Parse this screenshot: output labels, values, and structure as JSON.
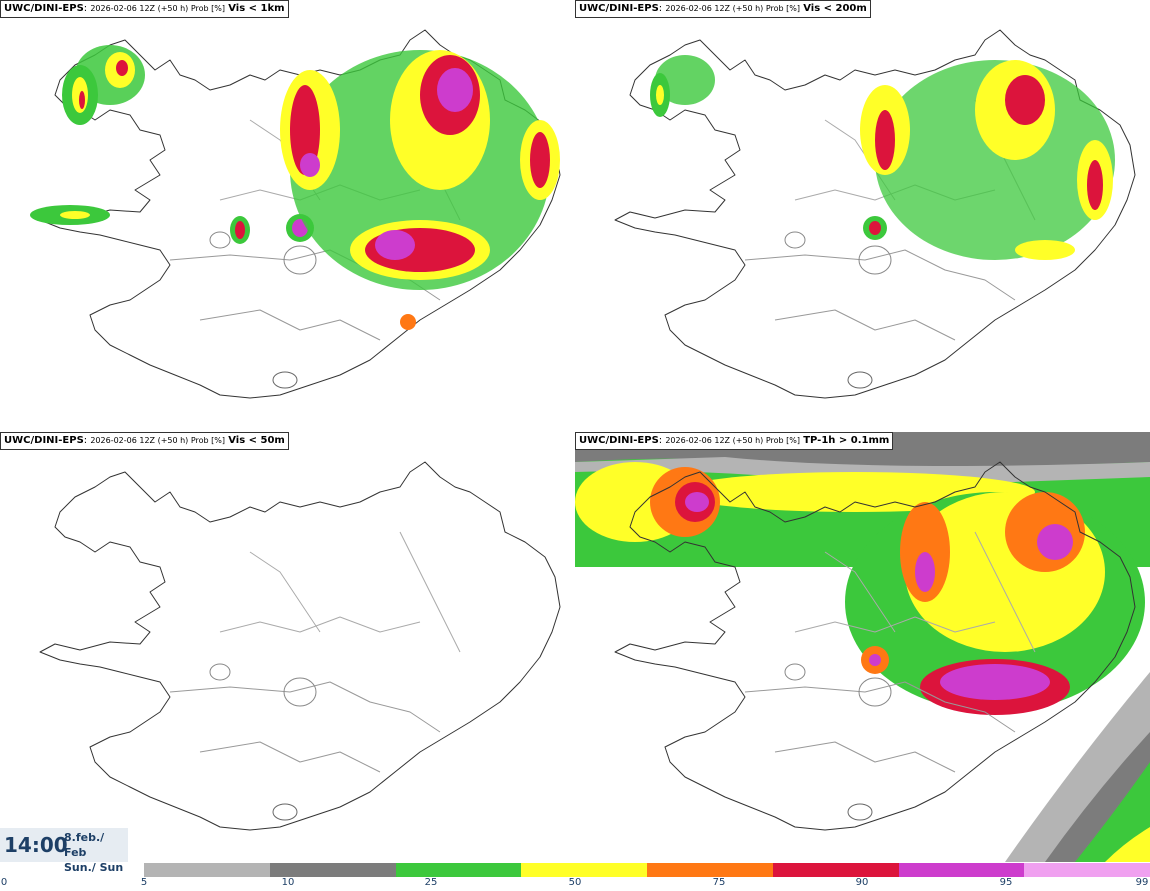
{
  "panels": [
    {
      "model": "UWC/DINI-EPS",
      "meta": "2026-02-06 12Z (+50 h) Prob [%]",
      "field": "Vis < 1km"
    },
    {
      "model": "UWC/DINI-EPS",
      "meta": "2026-02-06 12Z (+50 h) Prob [%]",
      "field": "Vis < 200m"
    },
    {
      "model": "UWC/DINI-EPS",
      "meta": "2026-02-06 12Z (+50 h) Prob [%]",
      "field": "Vis < 50m"
    },
    {
      "model": "UWC/DINI-EPS",
      "meta": "2026-02-06 12Z (+50 h) Prob [%]",
      "field": "TP-1h > 0.1mm"
    }
  ],
  "valid_time": {
    "time": "14:00",
    "date_line1": "8.feb./ Feb",
    "date_line2": "Sun./ Sun"
  },
  "colorbar": {
    "ticks": [
      "0",
      "5",
      "10",
      "25",
      "50",
      "75",
      "90",
      "95",
      "99"
    ],
    "colors": [
      "#b4b4b4",
      "#7c7c7c",
      "#3cc83c",
      "#ffff28",
      "#ff7814",
      "#dc143c",
      "#cd3ccd",
      "#f0a0f0"
    ]
  }
}
